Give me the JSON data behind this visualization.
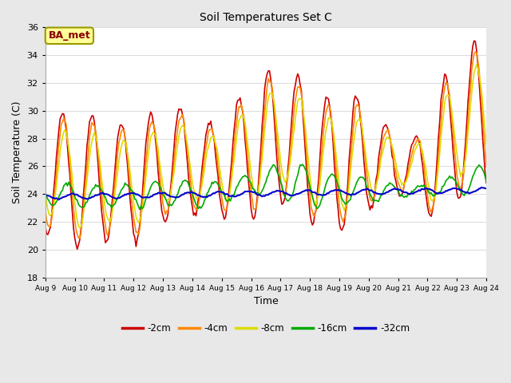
{
  "title": "Soil Temperatures Set C",
  "xlabel": "Time",
  "ylabel": "Soil Temperature (C)",
  "ylim": [
    18,
    36
  ],
  "yticks": [
    18,
    20,
    22,
    24,
    26,
    28,
    30,
    32,
    34,
    36
  ],
  "series_labels": [
    "-2cm",
    "-4cm",
    "-8cm",
    "-16cm",
    "-32cm"
  ],
  "series_colors": [
    "#cc0000",
    "#ff8800",
    "#dddd00",
    "#00aa00",
    "#0000cc"
  ],
  "series_linewidths": [
    1.2,
    1.2,
    1.2,
    1.2,
    1.5
  ],
  "fig_bg_color": "#e8e8e8",
  "plot_bg_color": "#ffffff",
  "annotation_text": "BA_met",
  "annotation_bg": "#ffff99",
  "annotation_border": "#999900",
  "annotation_text_color": "#880000",
  "grid_color": "#dddddd",
  "grid_linewidth": 0.8,
  "peak_times": [
    9.58,
    10.58,
    11.58,
    12.58,
    13.58,
    14.58,
    15.58,
    16.58,
    17.58,
    18.58,
    19.58,
    20.58,
    21.58,
    22.58,
    23.58
  ],
  "peak_vals_2": [
    30.0,
    29.8,
    29.1,
    29.8,
    30.3,
    29.1,
    30.9,
    33.0,
    32.6,
    31.0,
    31.1,
    29.0,
    28.0,
    32.5,
    35.0
  ],
  "trough_vals_2": [
    21.0,
    20.0,
    20.7,
    20.5,
    22.3,
    22.5,
    22.3,
    22.3,
    23.5,
    21.5,
    21.3,
    23.3,
    24.0,
    22.0,
    24.0
  ],
  "peak_vals_16": [
    24.8,
    24.6,
    24.7,
    24.9,
    25.0,
    24.8,
    25.2,
    26.0,
    26.2,
    25.5,
    25.3,
    24.8,
    24.5,
    25.0,
    26.0
  ],
  "trough_vals_16": [
    23.2,
    23.0,
    23.1,
    23.0,
    23.2,
    23.0,
    23.5,
    24.0,
    23.5,
    23.0,
    23.3,
    23.5,
    23.8,
    23.9,
    24.0
  ]
}
